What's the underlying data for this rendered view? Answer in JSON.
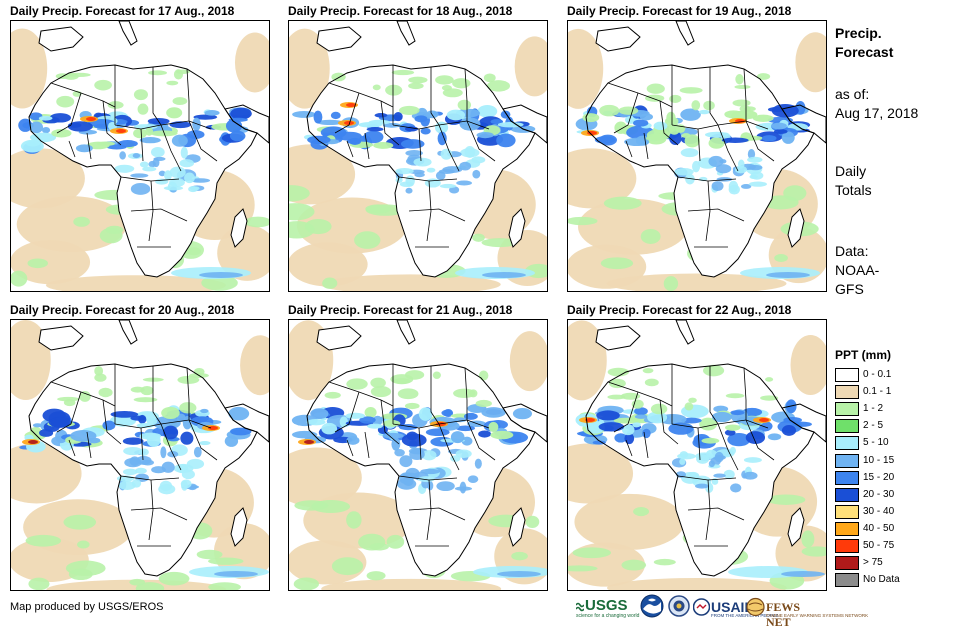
{
  "panels": [
    {
      "title": "Daily Precip. Forecast for 17 Aug., 2018"
    },
    {
      "title": "Daily Precip. Forecast for 18 Aug., 2018"
    },
    {
      "title": "Daily Precip. Forecast for 19 Aug., 2018"
    },
    {
      "title": "Daily Precip. Forecast for 20 Aug., 2018"
    },
    {
      "title": "Daily Precip. Forecast for 21 Aug., 2018"
    },
    {
      "title": "Daily Precip. Forecast for 22 Aug., 2018"
    }
  ],
  "side": {
    "heading_line1": "Precip.",
    "heading_line2": "Forecast",
    "asof_label": "as of:",
    "asof_date": "Aug 17, 2018",
    "totals_line1": "Daily",
    "totals_line2": "Totals",
    "data_line1": "Data:",
    "data_line2": "NOAA-",
    "data_line3": "GFS"
  },
  "legend": {
    "title": "PPT (mm)",
    "items": [
      {
        "label": "0 - 0.1",
        "color": "#ffffff"
      },
      {
        "label": "0.1 - 1",
        "color": "#efd9b4"
      },
      {
        "label": "1 - 2",
        "color": "#b8f2a8"
      },
      {
        "label": "2 - 5",
        "color": "#6fe06a"
      },
      {
        "label": "5 - 10",
        "color": "#a8eefc"
      },
      {
        "label": "10 - 15",
        "color": "#6fb3f2"
      },
      {
        "label": "15 - 20",
        "color": "#3d84ef"
      },
      {
        "label": "20 - 30",
        "color": "#1a4fd6"
      },
      {
        "label": "30 - 40",
        "color": "#ffe07a"
      },
      {
        "label": "40 - 50",
        "color": "#ffa81a"
      },
      {
        "label": "50 - 75",
        "color": "#ff3a0a"
      },
      {
        "label": "> 75",
        "color": "#b01a1a"
      },
      {
        "label": "No Data",
        "color": "#8c8c8c"
      }
    ]
  },
  "credit": "Map produced by USGS/EROS",
  "logos": {
    "usgs": "USGS",
    "usgs_tagline": "science for a changing world",
    "usaid": "USAID",
    "usaid_tagline": "FROM THE AMERICAN PEOPLE",
    "fews": "FEWS NET",
    "fews_tagline": "FAMINE EARLY WARNING SYSTEMS NETWORK"
  }
}
